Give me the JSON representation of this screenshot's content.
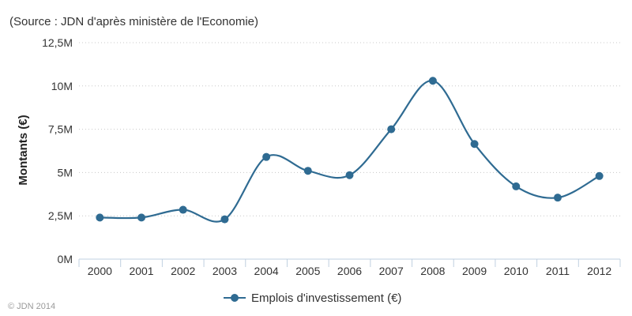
{
  "subtitle": "(Source : JDN d'après ministère de l'Economie)",
  "credits": "© JDN 2014",
  "colors": {
    "series": "#2f6b92",
    "grid": "#c8c8c8",
    "axis": "#c0d0e0"
  },
  "chart_data": {
    "type": "line",
    "smooth": true,
    "categories": [
      "2000",
      "2001",
      "2002",
      "2003",
      "2004",
      "2005",
      "2006",
      "2007",
      "2008",
      "2009",
      "2010",
      "2011",
      "2012"
    ],
    "series": [
      {
        "name": "Emplois d'investissement (€)",
        "values": [
          2.4,
          2.4,
          2.85,
          2.3,
          5.9,
          5.1,
          4.85,
          7.5,
          10.3,
          6.65,
          4.2,
          3.55,
          4.8
        ]
      }
    ],
    "ylabel": "Montants (€)",
    "ylim": [
      0,
      12.5
    ],
    "yticks": [
      {
        "value": 0,
        "label": "0M"
      },
      {
        "value": 2.5,
        "label": "2,5M"
      },
      {
        "value": 5,
        "label": "5M"
      },
      {
        "value": 7.5,
        "label": "7,5M"
      },
      {
        "value": 10,
        "label": "10M"
      },
      {
        "value": 12.5,
        "label": "12,5M"
      }
    ],
    "grid": true,
    "legend": "bottom-center"
  }
}
